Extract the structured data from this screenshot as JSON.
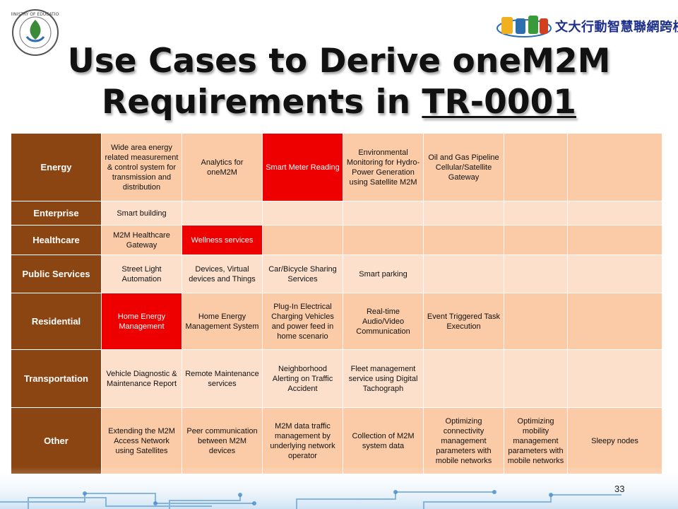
{
  "slide": {
    "title_prefix": "Use Cases to Derive oneM2M Requirements in ",
    "title_link": "TR-0001",
    "page_number": "33",
    "brand_text": "文大行動智慧聯網跨校聯盟"
  },
  "table": {
    "rows": [
      {
        "category": "Energy",
        "cells": [
          "Wide area energy related measurement & control system for transmission and distribution",
          "Analytics for oneM2M",
          "Smart Meter Reading",
          "Environmental Monitoring for Hydro-Power Generation using Satellite M2M",
          "Oil and Gas Pipeline Cellular/Satellite Gateway",
          "",
          ""
        ]
      },
      {
        "category": "Enterprise",
        "cells": [
          "Smart building",
          "",
          "",
          "",
          "",
          "",
          ""
        ]
      },
      {
        "category": "Healthcare",
        "cells": [
          "M2M Healthcare Gateway",
          "Wellness services",
          "",
          "",
          "",
          "",
          ""
        ]
      },
      {
        "category": "Public Services",
        "cells": [
          "Street Light Automation",
          "Devices, Virtual devices and Things",
          "Car/Bicycle Sharing Services",
          "Smart parking",
          "",
          "",
          ""
        ]
      },
      {
        "category": "Residential",
        "cells": [
          "Home Energy Management",
          "Home Energy Management System",
          "Plug-In Electrical Charging Vehicles and power feed in home scenario",
          "Real-time Audio/Video Communication",
          "Event Triggered Task Execution",
          "",
          ""
        ]
      },
      {
        "category": "Transportation",
        "cells": [
          "Vehicle Diagnostic & Maintenance Report",
          "Remote Maintenance services",
          "Neighborhood Alerting on Traffic Accident",
          "Fleet management service using Digital Tachograph",
          "",
          "",
          ""
        ]
      },
      {
        "category": "Other",
        "cells": [
          "Extending the M2M Access Network using Satellites",
          "Peer communication between M2M devices",
          "M2M data traffic management by underlying network operator",
          "Collection of M2M system data",
          "Optimizing connectivity management parameters with mobile networks",
          "Optimizing mobility management parameters with mobile networks",
          "Sleepy nodes"
        ]
      }
    ]
  },
  "colors": {
    "category_bg": "#8b4512",
    "highlight": "#ee0000",
    "cell_dark": "#fbcba7",
    "cell_light": "#fde0cc"
  }
}
